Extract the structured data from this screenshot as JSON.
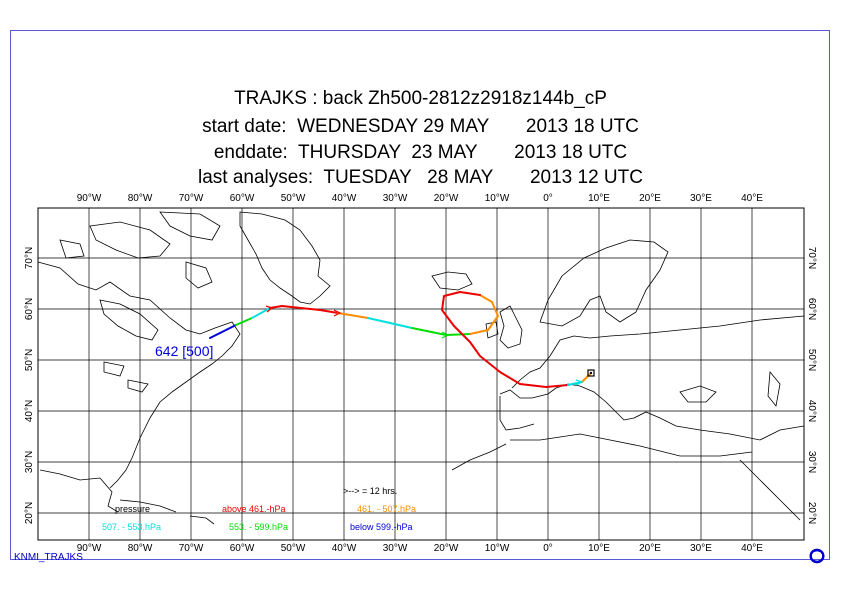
{
  "title": {
    "line1": "TRAJKS : back Zh500-2812z2918z144b_cP",
    "line2": "start date:  WEDNESDAY 29 MAY       2013 18 UTC",
    "line3": "enddate:  THURSDAY  23 MAY       2013 18 UTC",
    "line4": "last analyses:  TUESDAY   28 MAY       2013 12 UTC"
  },
  "longitude_labels": [
    "90°W",
    "80°W",
    "70°W",
    "60°W",
    "50°W",
    "40°W",
    "30°W",
    "20°W",
    "10°W",
    "0°",
    "10°E",
    "20°E",
    "30°E",
    "40°E"
  ],
  "latitude_labels": [
    "20°N",
    "30°N",
    "40°N",
    "50°N",
    "60°N",
    "70°N"
  ],
  "trajectory_label": "642 [500]",
  "legend": {
    "arrow_note": ">-->  = 12 hrs.",
    "pressure": "pressure",
    "above": "above   461.-hPa",
    "r461_507": "461. -   507.hPa",
    "r507_553": "507. -    553.hPa",
    "r553_599": "553. -    599.hPa",
    "below": "below   599.-hPa"
  },
  "footer": "KNMI_TRAJKS",
  "colors": {
    "above": "#ee0000",
    "r461_507": "#ff8c00",
    "r507_553": "#00e0e0",
    "r553_599": "#00dd00",
    "below": "#0000dd",
    "frame": "#5a5ad8"
  }
}
